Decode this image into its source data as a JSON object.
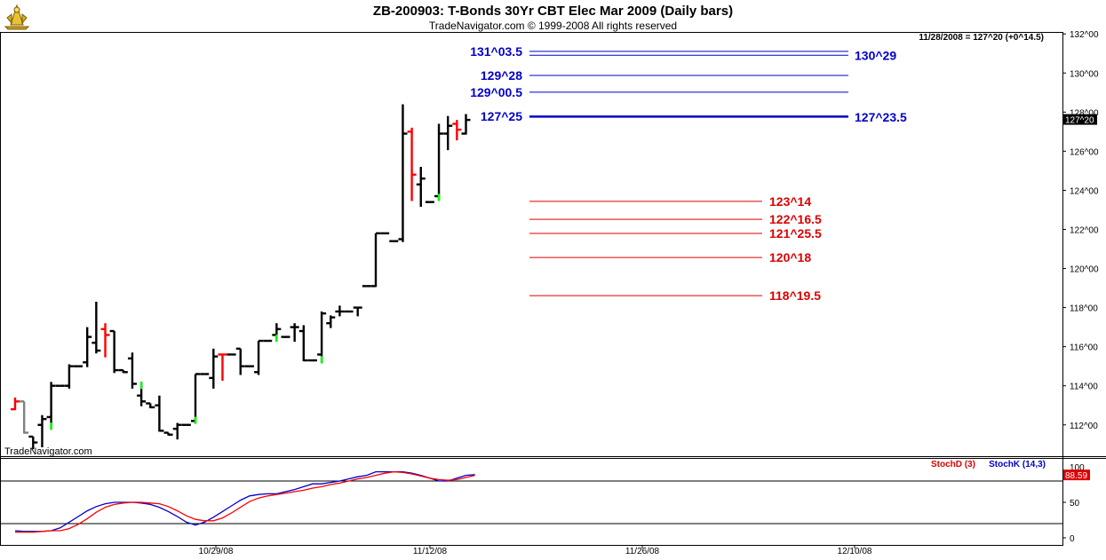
{
  "header": {
    "title": "ZB-200903:  T-Bonds 30Yr CBT Elec Mar 2009  (Daily bars)",
    "subtitle": "TradeNavigator.com © 1999-2008 All rights reserved",
    "readout": "11/28/2008 = 127^20 (+0^14.5)",
    "watermark": "TradeNavigator.com"
  },
  "colors": {
    "up_bar": "#000000",
    "down_bar": "#ff0000",
    "neutral_bar": "#808080",
    "highlight": "#00ff00",
    "blue_level": "#0000cc",
    "red_level": "#dd0000",
    "stoch_d": "#ff0000",
    "stoch_k": "#0000cc"
  },
  "chart_data": [
    {
      "type": "ohlc",
      "title": "ZB-200903:  T-Bonds 30Yr CBT Elec Mar 2009  (Daily bars)",
      "y_tick_labels": [
        "112^00",
        "114^00",
        "116^00",
        "118^00",
        "120^00",
        "122^00",
        "124^00",
        "126^00",
        "128^00",
        "130^00",
        "132^00"
      ],
      "y_ticks": [
        112,
        114,
        116,
        118,
        120,
        122,
        124,
        126,
        128,
        130,
        132
      ],
      "ylim": [
        110.4,
        132.1
      ],
      "x_tick_labels": [
        "10/29/08",
        "11/12/08",
        "11/26/08",
        "12/10/08"
      ],
      "last_price_label": "127^20",
      "last_price": 127.625,
      "bars": [
        {
          "o": 112.8,
          "h": 113.4,
          "l": 112.8,
          "c": 113.2,
          "color": "red"
        },
        {
          "o": 113.2,
          "h": 113.2,
          "l": 111.6,
          "c": 111.6,
          "color": "gray"
        },
        {
          "o": 111.4,
          "h": 111.4,
          "l": 110.8,
          "c": 111.1,
          "color": "black"
        },
        {
          "o": 112.0,
          "h": 112.5,
          "l": 110.9,
          "c": 112.3,
          "color": "black"
        },
        {
          "o": 112.4,
          "h": 114.2,
          "l": 111.8,
          "c": 114.0,
          "color": "black",
          "hl": "low"
        },
        {
          "o": 114.0,
          "h": 114.0,
          "l": 114.0,
          "c": 114.0,
          "color": "black"
        },
        {
          "o": 114.0,
          "h": 115.1,
          "l": 113.9,
          "c": 115.0,
          "color": "black"
        },
        {
          "o": 115.0,
          "h": 115.0,
          "l": 115.0,
          "c": 115.0,
          "color": "black"
        },
        {
          "o": 115.2,
          "h": 117.0,
          "l": 115.0,
          "c": 116.5,
          "color": "black"
        },
        {
          "o": 116.2,
          "h": 118.3,
          "l": 115.7,
          "c": 115.8,
          "color": "black"
        },
        {
          "o": 116.9,
          "h": 117.2,
          "l": 115.5,
          "c": 116.6,
          "color": "red"
        },
        {
          "o": 116.8,
          "h": 116.8,
          "l": 114.7,
          "c": 114.8,
          "color": "black"
        },
        {
          "o": 114.8,
          "h": 114.8,
          "l": 114.7,
          "c": 114.7,
          "color": "black"
        },
        {
          "o": 115.4,
          "h": 115.7,
          "l": 113.9,
          "c": 114.1,
          "color": "black"
        },
        {
          "o": 113.5,
          "h": 114.2,
          "l": 113.0,
          "c": 113.2,
          "color": "black",
          "hl": "high"
        },
        {
          "o": 113.1,
          "h": 113.1,
          "l": 112.9,
          "c": 112.9,
          "color": "black"
        },
        {
          "o": 113.0,
          "h": 113.5,
          "l": 111.7,
          "c": 111.7,
          "color": "black"
        },
        {
          "o": 111.6,
          "h": 111.6,
          "l": 111.5,
          "c": 111.5,
          "color": "black"
        },
        {
          "o": 111.8,
          "h": 112.1,
          "l": 111.3,
          "c": 112.0,
          "color": "black"
        },
        {
          "o": 112.0,
          "h": 112.0,
          "l": 112.0,
          "c": 112.0,
          "color": "black"
        },
        {
          "o": 112.2,
          "h": 114.6,
          "l": 112.1,
          "c": 114.6,
          "color": "black",
          "hl": "low"
        },
        {
          "o": 114.6,
          "h": 114.6,
          "l": 114.6,
          "c": 114.6,
          "color": "black"
        },
        {
          "o": 114.4,
          "h": 115.9,
          "l": 113.9,
          "c": 115.5,
          "color": "black"
        },
        {
          "o": 115.6,
          "h": 115.6,
          "l": 114.3,
          "c": 115.6,
          "color": "red"
        },
        {
          "o": 115.6,
          "h": 115.6,
          "l": 115.6,
          "c": 115.6,
          "color": "black"
        },
        {
          "o": 115.9,
          "h": 115.9,
          "l": 114.6,
          "c": 115.0,
          "color": "black"
        },
        {
          "o": 115.0,
          "h": 115.0,
          "l": 115.0,
          "c": 115.0,
          "color": "black"
        },
        {
          "o": 114.7,
          "h": 116.3,
          "l": 114.6,
          "c": 116.3,
          "color": "black"
        },
        {
          "o": 116.3,
          "h": 116.3,
          "l": 116.3,
          "c": 116.3,
          "color": "black"
        },
        {
          "o": 116.6,
          "h": 117.2,
          "l": 116.3,
          "c": 116.9,
          "color": "black",
          "hl": "low"
        },
        {
          "o": 116.5,
          "h": 116.5,
          "l": 116.5,
          "c": 116.5,
          "color": "black"
        },
        {
          "o": 117.0,
          "h": 117.2,
          "l": 116.3,
          "c": 117.0,
          "color": "black"
        },
        {
          "o": 116.8,
          "h": 117.1,
          "l": 115.3,
          "c": 115.3,
          "color": "black"
        },
        {
          "o": 115.3,
          "h": 115.3,
          "l": 115.3,
          "c": 115.3,
          "color": "black"
        },
        {
          "o": 115.6,
          "h": 117.8,
          "l": 115.2,
          "c": 117.7,
          "color": "black",
          "hl": "low"
        },
        {
          "o": 117.2,
          "h": 117.6,
          "l": 117.0,
          "c": 117.5,
          "color": "black"
        },
        {
          "o": 117.8,
          "h": 118.1,
          "l": 117.6,
          "c": 117.8,
          "color": "black"
        },
        {
          "o": 117.8,
          "h": 117.8,
          "l": 117.8,
          "c": 117.8,
          "color": "black"
        },
        {
          "o": 118.0,
          "h": 118.0,
          "l": 117.6,
          "c": 118.0,
          "color": "black"
        },
        {
          "o": 119.1,
          "h": 119.1,
          "l": 119.1,
          "c": 119.1,
          "color": "black"
        },
        {
          "o": 119.1,
          "h": 121.8,
          "l": 119.1,
          "c": 121.8,
          "color": "black"
        },
        {
          "o": 121.8,
          "h": 121.8,
          "l": 121.8,
          "c": 121.8,
          "color": "black"
        },
        {
          "o": 121.4,
          "h": 121.4,
          "l": 121.4,
          "c": 121.4,
          "color": "black"
        },
        {
          "o": 121.5,
          "h": 128.4,
          "l": 121.4,
          "c": 126.9,
          "color": "black"
        },
        {
          "o": 127.0,
          "h": 127.2,
          "l": 123.5,
          "c": 124.8,
          "color": "red"
        },
        {
          "o": 124.3,
          "h": 125.2,
          "l": 123.2,
          "c": 124.6,
          "color": "black"
        },
        {
          "o": 123.4,
          "h": 123.4,
          "l": 123.4,
          "c": 123.4,
          "color": "black"
        },
        {
          "o": 123.7,
          "h": 127.4,
          "l": 123.5,
          "c": 126.9,
          "color": "black",
          "hl": "low"
        },
        {
          "o": 126.9,
          "h": 127.8,
          "l": 126.1,
          "c": 127.3,
          "color": "black"
        },
        {
          "o": 127.4,
          "h": 127.6,
          "l": 126.6,
          "c": 127.1,
          "color": "red"
        },
        {
          "o": 126.9,
          "h": 127.9,
          "l": 126.9,
          "c": 127.6,
          "color": "black"
        }
      ],
      "levels": [
        {
          "label": "131^03.5",
          "value": 131.109,
          "color": "blue",
          "side": "left"
        },
        {
          "label": "130^29",
          "value": 130.906,
          "color": "blue",
          "side": "right"
        },
        {
          "label": "129^28",
          "value": 129.875,
          "color": "blue",
          "side": "left"
        },
        {
          "label": "129^00.5",
          "value": 129.016,
          "color": "blue",
          "side": "left"
        },
        {
          "label": "127^25",
          "value": 127.781,
          "color": "blue",
          "side": "left"
        },
        {
          "label": "127^23.5",
          "value": 127.734,
          "color": "blue",
          "side": "right"
        },
        {
          "label": "123^14",
          "value": 123.4375,
          "color": "red",
          "side": "right"
        },
        {
          "label": "122^16.5",
          "value": 122.516,
          "color": "red",
          "side": "right"
        },
        {
          "label": "121^25.5",
          "value": 121.797,
          "color": "red",
          "side": "right"
        },
        {
          "label": "120^18",
          "value": 120.5625,
          "color": "red",
          "side": "right"
        },
        {
          "label": "118^19.5",
          "value": 118.609,
          "color": "red",
          "side": "right"
        }
      ]
    },
    {
      "type": "line",
      "title": "",
      "legend": [
        "StochD (3)",
        "StochK (14,3)"
      ],
      "y_tick_labels": [
        "0",
        "50"
      ],
      "y_ticks": [
        0,
        50
      ],
      "ylim": [
        0,
        100
      ],
      "overbought": 80,
      "oversold": 20,
      "last_value_label": "88.59",
      "last_value": 88.59,
      "series": [
        {
          "name": "StochK (14,3)",
          "color": "blue",
          "values": [
            10,
            9,
            9,
            9,
            10,
            14,
            22,
            30,
            38,
            44,
            48,
            50,
            50,
            50,
            49,
            47,
            43,
            37,
            30,
            22,
            18,
            22,
            29,
            37,
            45,
            53,
            59,
            61,
            62,
            62,
            65,
            68,
            72,
            76,
            76,
            78,
            80,
            83,
            86,
            88,
            93,
            93,
            93,
            93,
            91,
            88,
            84,
            80,
            80,
            84,
            88,
            89
          ]
        },
        {
          "name": "StochD (3)",
          "color": "red",
          "values": [
            8,
            8,
            8,
            9,
            10,
            10,
            13,
            19,
            27,
            36,
            43,
            47,
            49,
            50,
            50,
            49,
            48,
            44,
            38,
            31,
            26,
            24,
            24,
            28,
            35,
            43,
            51,
            56,
            59,
            61,
            63,
            65,
            67,
            70,
            72,
            75,
            77,
            80,
            83,
            85,
            88,
            91,
            93,
            92,
            90,
            87,
            84,
            82,
            81,
            82,
            85,
            88
          ]
        }
      ]
    }
  ]
}
